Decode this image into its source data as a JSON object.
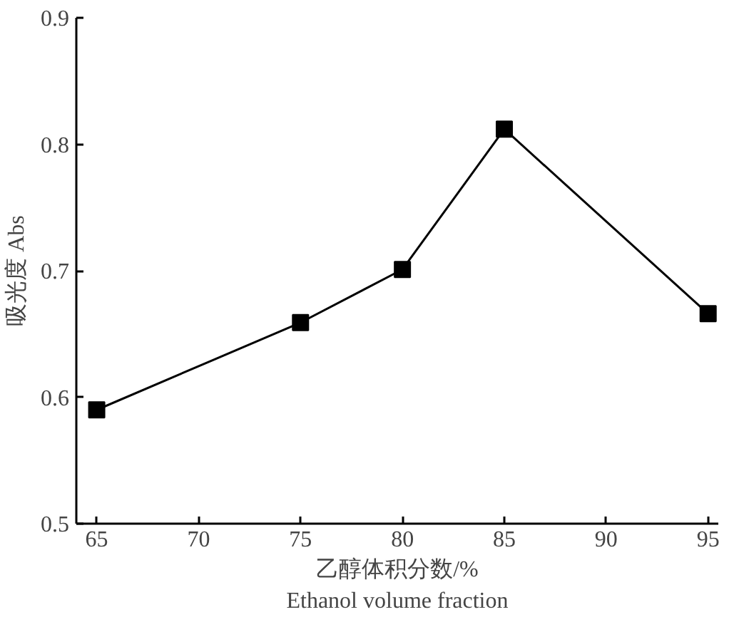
{
  "chart_data": {
    "type": "line",
    "xlabel": "乙醇体积分数/%\nEthanol volume fraction",
    "ylabel": "吸光度 Abs",
    "x": [
      65,
      75,
      80,
      85,
      95
    ],
    "series": [
      {
        "color": "#000000",
        "values": [
          0.59,
          0.659,
          0.701,
          0.812,
          0.666
        ]
      }
    ],
    "xlim": [
      64,
      95.5
    ],
    "xticks": [
      65,
      70,
      75,
      80,
      85,
      90,
      95
    ],
    "ylim": [
      0.5,
      0.9
    ],
    "yticks": [
      0.5,
      0.6,
      0.7,
      0.8,
      0.9
    ],
    "grid": false,
    "marker": "square",
    "line_style": "solid"
  }
}
